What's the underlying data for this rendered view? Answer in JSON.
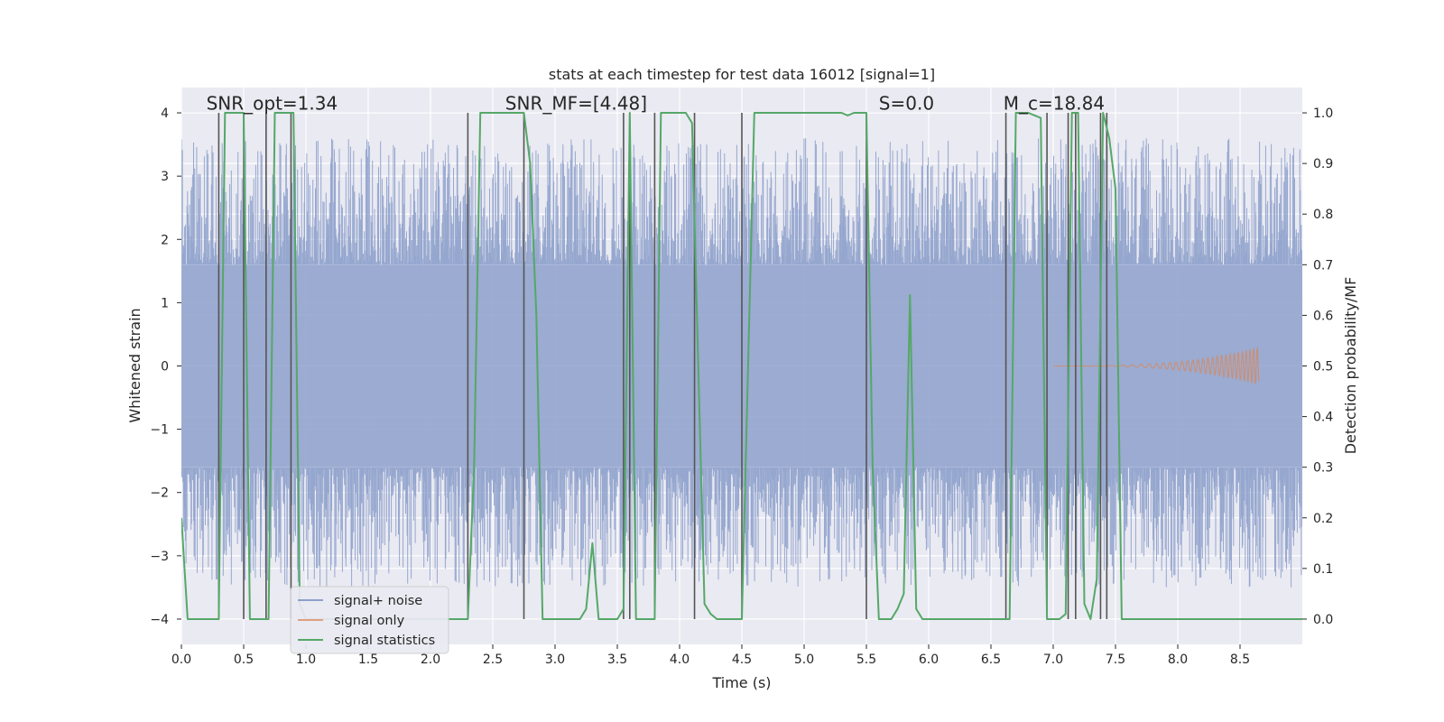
{
  "chart_data": {
    "type": "line",
    "title": "stats at each timestep for test data 16012 [signal=1]",
    "xlabel": "Time (s)",
    "ylabel_left": "Whitened strain",
    "ylabel_right": "Detection probability/MF",
    "xlim": [
      0.0,
      9.0
    ],
    "ylim_left": [
      -4.4,
      4.4
    ],
    "ylim_right": [
      -0.05,
      1.05
    ],
    "x_ticks": [
      0.0,
      0.5,
      1.0,
      1.5,
      2.0,
      2.5,
      3.0,
      3.5,
      4.0,
      4.5,
      5.0,
      5.5,
      6.0,
      6.5,
      7.0,
      7.5,
      8.0,
      8.5
    ],
    "x_tick_labels": [
      "0.0",
      "0.5",
      "1.0",
      "1.5",
      "2.0",
      "2.5",
      "3.0",
      "3.5",
      "4.0",
      "4.5",
      "5.0",
      "5.5",
      "6.0",
      "6.5",
      "7.0",
      "7.5",
      "8.0",
      "8.5"
    ],
    "y_left_ticks": [
      -4,
      -3,
      -2,
      -1,
      0,
      1,
      2,
      3,
      4
    ],
    "y_left_tick_labels": [
      "−4",
      "−3",
      "−2",
      "−1",
      "0",
      "1",
      "2",
      "3",
      "4"
    ],
    "y_right_ticks": [
      0.0,
      0.1,
      0.2,
      0.3,
      0.4,
      0.5,
      0.6,
      0.7,
      0.8,
      0.9,
      1.0
    ],
    "y_right_tick_labels": [
      "0.0",
      "0.1",
      "0.2",
      "0.3",
      "0.4",
      "0.5",
      "0.6",
      "0.7",
      "0.8",
      "0.9",
      "1.0"
    ],
    "annotations": [
      {
        "text": "SNR_opt=1.34",
        "x": 0.2,
        "y": 4.05
      },
      {
        "text": "SNR_MF=[4.48]",
        "x": 2.6,
        "y": 4.05
      },
      {
        "text": "S=0.0",
        "x": 5.6,
        "y": 4.05
      },
      {
        "text": "M_c=18.84",
        "x": 6.6,
        "y": 4.05
      }
    ],
    "legend": {
      "placement": "lower-left",
      "entries": [
        {
          "label": "signal+ noise",
          "color": "#8da0cb"
        },
        {
          "label": "signal only",
          "color": "#e0a080"
        },
        {
          "label": "signal statistics",
          "color": "#55a868"
        }
      ]
    },
    "colors": {
      "background": "#eaeaf2",
      "grid": "#ffffff",
      "noise": "#8da0cb",
      "signal": "#dd8452",
      "statistic": "#55a868",
      "marker_line": "#555555"
    },
    "noise_series": {
      "name": "signal+ noise",
      "axis": "left",
      "band_low": -1.6,
      "band_high": 1.6,
      "spike_max": 3.6,
      "spike_min": -3.5
    },
    "signal_series": {
      "name": "signal only",
      "axis": "left",
      "start_x": 7.0,
      "end_x": 8.65,
      "peak_amplitude": 0.3
    },
    "statistic_series": {
      "name": "signal statistics",
      "axis": "right",
      "x": [
        0.0,
        0.05,
        0.1,
        0.15,
        0.2,
        0.25,
        0.3,
        0.35,
        0.4,
        0.45,
        0.5,
        0.55,
        0.6,
        0.65,
        0.7,
        0.75,
        0.8,
        0.85,
        0.9,
        0.95,
        1.0,
        1.5,
        2.0,
        2.25,
        2.3,
        2.35,
        2.4,
        2.5,
        2.6,
        2.7,
        2.75,
        2.8,
        2.85,
        2.9,
        3.0,
        3.1,
        3.2,
        3.25,
        3.3,
        3.35,
        3.4,
        3.5,
        3.55,
        3.6,
        3.65,
        3.7,
        3.75,
        3.8,
        3.85,
        3.9,
        4.0,
        4.05,
        4.1,
        4.15,
        4.2,
        4.25,
        4.3,
        4.4,
        4.45,
        4.5,
        4.55,
        4.6,
        4.7,
        4.8,
        4.9,
        5.0,
        5.1,
        5.2,
        5.3,
        5.35,
        5.4,
        5.5,
        5.55,
        5.6,
        5.65,
        5.7,
        5.75,
        5.8,
        5.85,
        5.9,
        5.95,
        6.0,
        6.1,
        6.2,
        6.3,
        6.4,
        6.5,
        6.6,
        6.65,
        6.7,
        6.75,
        6.8,
        6.9,
        6.95,
        7.0,
        7.05,
        7.1,
        7.15,
        7.2,
        7.25,
        7.3,
        7.35,
        7.4,
        7.45,
        7.5,
        7.55,
        7.6,
        8.0,
        8.5,
        9.0
      ],
      "y": [
        0.2,
        0.0,
        0.0,
        0.0,
        0.0,
        0.0,
        0.0,
        1.0,
        1.0,
        1.0,
        1.0,
        0.0,
        0.0,
        0.0,
        0.0,
        1.0,
        1.0,
        1.0,
        1.0,
        0.03,
        0.0,
        0.0,
        0.0,
        0.0,
        0.0,
        0.3,
        1.0,
        1.0,
        1.0,
        1.0,
        1.0,
        0.9,
        0.6,
        0.0,
        0.0,
        0.0,
        0.0,
        0.02,
        0.15,
        0.0,
        0.0,
        0.0,
        0.02,
        1.0,
        0.0,
        0.0,
        0.0,
        0.0,
        1.0,
        1.0,
        1.0,
        1.0,
        0.98,
        0.5,
        0.03,
        0.01,
        0.0,
        0.0,
        0.0,
        0.0,
        0.5,
        1.0,
        1.0,
        1.0,
        1.0,
        1.0,
        1.0,
        1.0,
        1.0,
        0.995,
        1.0,
        1.0,
        0.3,
        0.0,
        0.0,
        0.0,
        0.02,
        0.05,
        0.64,
        0.02,
        0.0,
        0.0,
        0.0,
        0.0,
        0.0,
        0.0,
        0.0,
        0.0,
        0.0,
        1.0,
        1.0,
        1.0,
        0.99,
        0.0,
        0.0,
        0.0,
        0.01,
        1.0,
        1.0,
        0.03,
        0.0,
        0.08,
        1.0,
        0.95,
        0.85,
        0.0,
        0.0,
        0.0,
        0.0,
        0.0
      ]
    },
    "marker_lines_x": [
      0.3,
      0.5,
      0.68,
      0.88,
      2.3,
      2.75,
      3.55,
      3.6,
      3.8,
      4.12,
      4.5,
      5.5,
      6.62,
      6.95,
      7.12,
      7.18,
      7.38,
      7.43
    ]
  }
}
